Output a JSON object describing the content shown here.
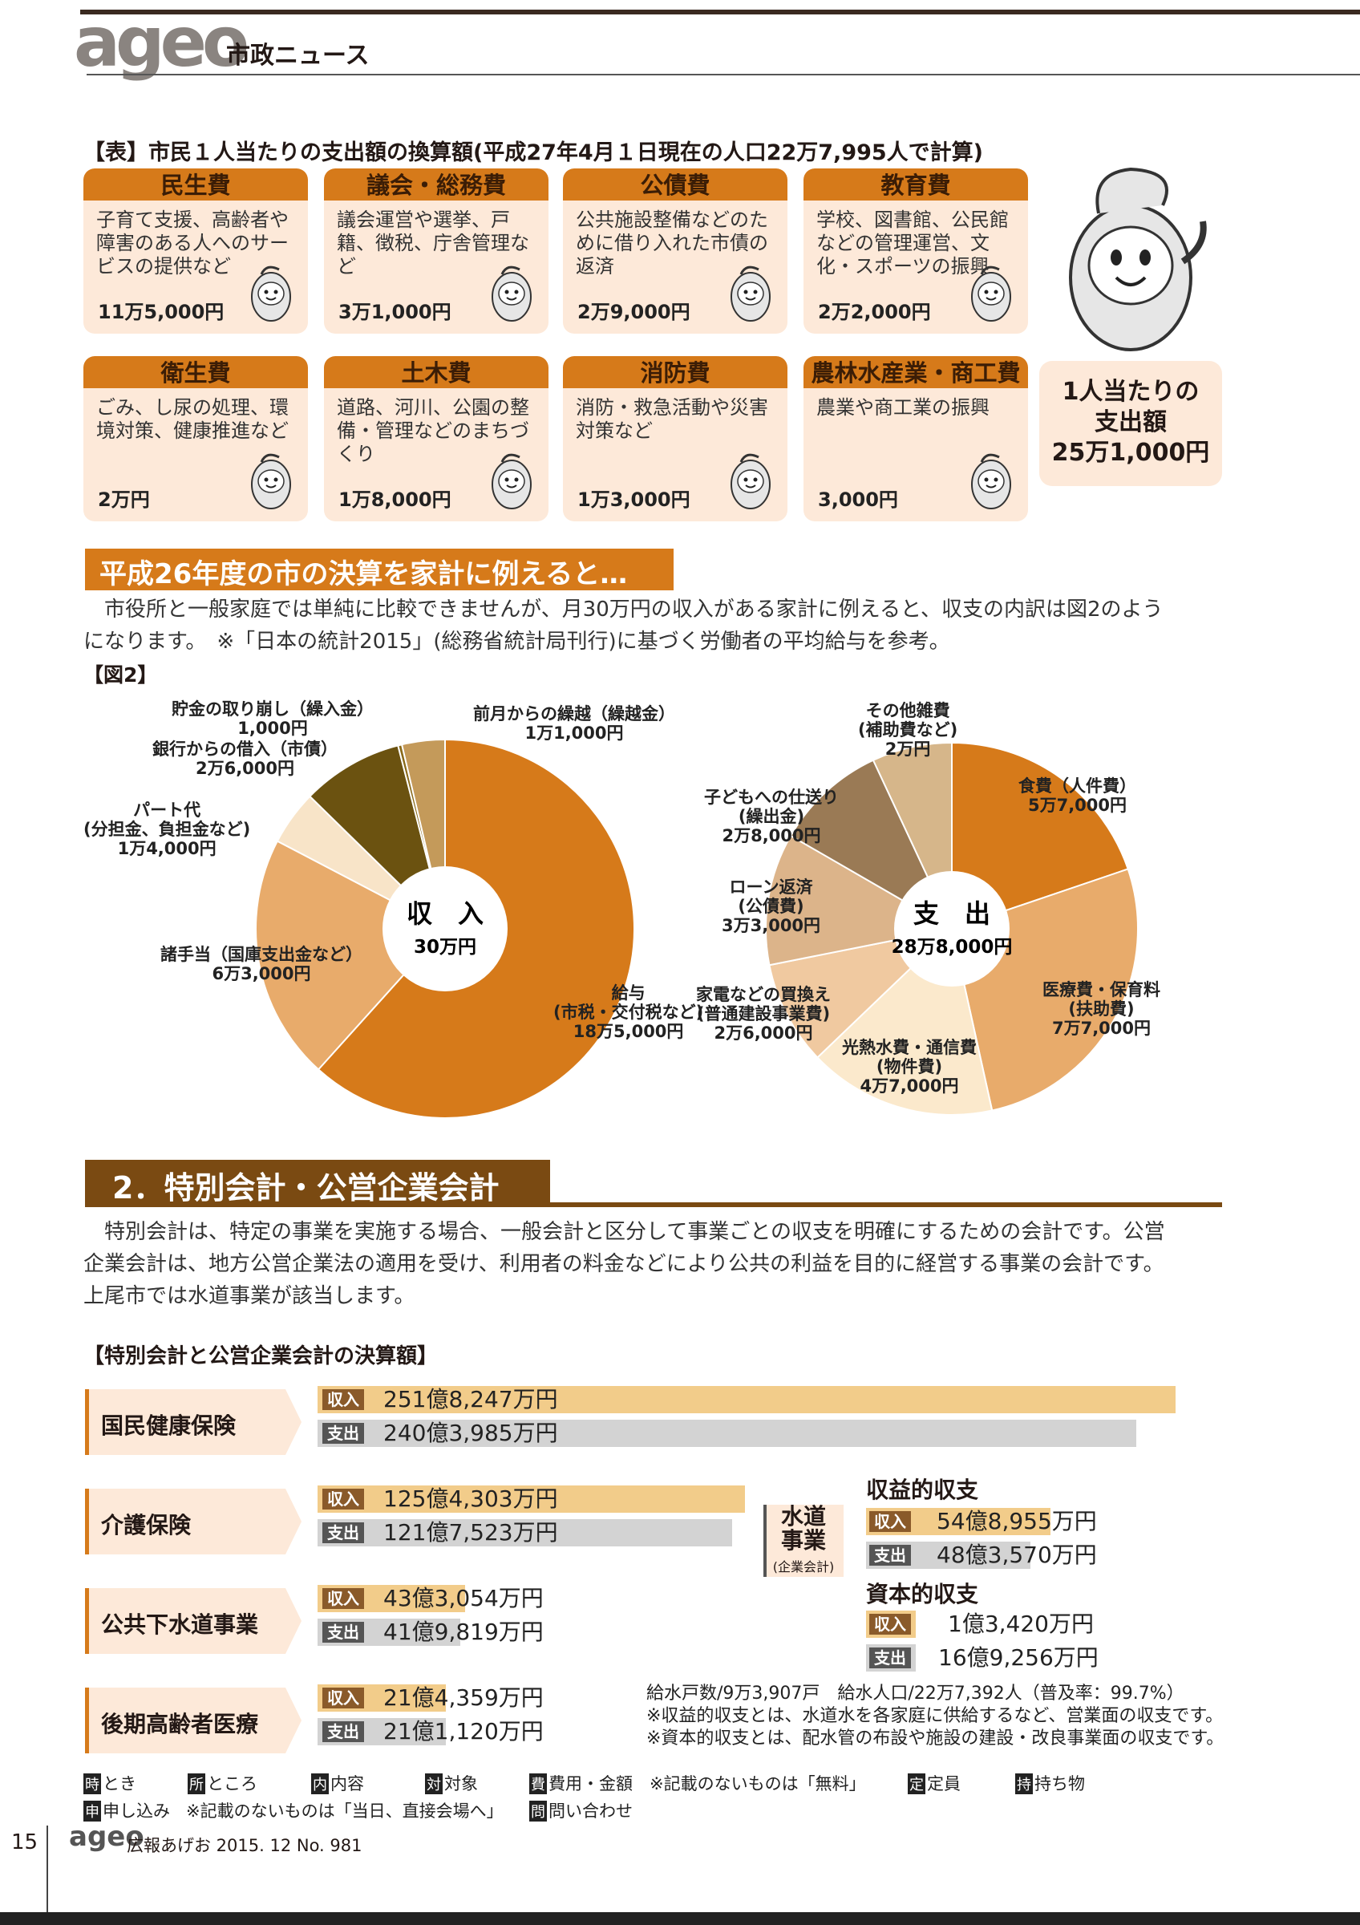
{
  "header": {
    "logo": "ageo",
    "title": "市政ニュース"
  },
  "table": {
    "title": "【表】市民１人当たりの支出額の換算額(平成27年4月１日現在の人口22万7,995人で計算)",
    "cards": [
      {
        "name": "民生費",
        "desc": "子育て支援、高齢者や障害のある人へのサービスの提供など",
        "amount": "11万5,000円"
      },
      {
        "name": "議会・総務費",
        "desc": "議会運営や選挙、戸籍、徴税、庁舎管理など",
        "amount": "3万1,000円"
      },
      {
        "name": "公債費",
        "desc": "公共施設整備などのために借り入れた市債の返済",
        "amount": "2万9,000円"
      },
      {
        "name": "教育費",
        "desc": "学校、図書館、公民館などの管理運営、文化・スポーツの振興",
        "amount": "2万2,000円"
      },
      {
        "name": "衛生費",
        "desc": "ごみ、し尿の処理、環境対策、健康推進など",
        "amount": "2万円"
      },
      {
        "name": "土木費",
        "desc": "道路、河川、公園の整備・管理などのまちづくり",
        "amount": "1万8,000円"
      },
      {
        "name": "消防費",
        "desc": "消防・救急活動や災害対策など",
        "amount": "1万3,000円"
      },
      {
        "name": "農林水産業・商工費",
        "desc": "農業や商工業の振興",
        "amount": "3,000円"
      }
    ],
    "total": {
      "line1": "1人当たりの",
      "line2": "支出額",
      "line3": "25万1,000円"
    }
  },
  "section_h26": {
    "title": "平成26年度の市の決算を家計に例えると…",
    "para_line1": "　市役所と一般家庭では単純に比較できませんが、月30万円の収入がある家計に例えると、収支の内訳は図2のよう",
    "para_line2": "になります。　※「日本の統計2015」(総務省統計局刊行)に基づく労働者の平均給与を参考。",
    "fig_label": "【図2】"
  },
  "chart_data": [
    {
      "type": "pie",
      "center_label": "収　入",
      "center_value": "30万円",
      "slices": [
        {
          "label": "給与\n(市税・交付税など)",
          "value_text": "18万5,000円",
          "value": 185000,
          "color": "#d67a1a"
        },
        {
          "label": "諸手当（国庫支出金など）",
          "value_text": "6万3,000円",
          "value": 63000,
          "color": "#e8ab6b"
        },
        {
          "label": "パート代\n(分担金、負担金など)",
          "value_text": "1万4,000円",
          "value": 14000,
          "color": "#f8e4c8"
        },
        {
          "label": "銀行からの借入（市債）",
          "value_text": "2万6,000円",
          "value": 26000,
          "color": "#6b5210"
        },
        {
          "label": "貯金の取り崩し（繰入金）",
          "value_text": "1,000円",
          "value": 1000,
          "color": "#8a6a1a"
        },
        {
          "label": "前月からの繰越（繰越金）",
          "value_text": "1万1,000円",
          "value": 11000,
          "color": "#c49a5a"
        }
      ]
    },
    {
      "type": "pie",
      "center_label": "支　出",
      "center_value": "28万8,000円",
      "slices": [
        {
          "label": "食費（人件費）",
          "value_text": "5万7,000円",
          "value": 57000,
          "color": "#d67a1a"
        },
        {
          "label": "医療費・保育料\n(扶助費)",
          "value_text": "7万7,000円",
          "value": 77000,
          "color": "#e8ab6b"
        },
        {
          "label": "光熱水費・通信費\n(物件費)",
          "value_text": "4万7,000円",
          "value": 47000,
          "color": "#fbe9cc"
        },
        {
          "label": "家電などの買換え\n(普通建設事業費)",
          "value_text": "2万6,000円",
          "value": 26000,
          "color": "#f0c9a0"
        },
        {
          "label": "ローン返済\n(公債費)",
          "value_text": "3万3,000円",
          "value": 33000,
          "color": "#dcb48a"
        },
        {
          "label": "子どもへの仕送り\n(繰出金)",
          "value_text": "2万8,000円",
          "value": 28000,
          "color": "#9a7a55"
        },
        {
          "label": "その他雑費\n(補助費など)",
          "value_text": "2万円",
          "value": 20000,
          "color": "#d6b68a"
        }
      ]
    }
  ],
  "section2": {
    "title": "2．特別会計・公営企業会計",
    "para_line1": "　特別会計は、特定の事業を実施する場合、一般会計と区分して事業ごとの収支を明確にするための会計です。公営",
    "para_line2": "企業会計は、地方公営企業法の適用を受け、利用者の料金などにより公共の利益を目的に経営する事業の会計です。",
    "para_line3": "上尾市では水道事業が該当します。",
    "acc_title": "【特別会計と公営企業会計の決算額】",
    "in_tag": "収入",
    "out_tag": "支出",
    "accounts": [
      {
        "name": "国民健康保険",
        "income": "251億8,247万円",
        "expense": "240億3,985万円",
        "income_v": 251.8247,
        "expense_v": 240.3985
      },
      {
        "name": "介護保険",
        "income": "125億4,303万円",
        "expense": "121億7,523万円",
        "income_v": 125.4303,
        "expense_v": 121.7523
      },
      {
        "name": "公共下水道事業",
        "income": "43億3,054万円",
        "expense": "41億9,819万円",
        "income_v": 43.3054,
        "expense_v": 41.9819
      },
      {
        "name": "後期高齢者医療",
        "income": "21億4,359万円",
        "expense": "21億1,120万円",
        "income_v": 21.4359,
        "expense_v": 21.112
      }
    ],
    "water": {
      "name_l1": "水道",
      "name_l2": "事業",
      "sub": "(企業会計)",
      "rev_title": "収益的収支",
      "rev_income": "54億8,955万円",
      "rev_expense": "48億3,570万円",
      "cap_title": "資本的収支",
      "cap_income": "1億3,420万円",
      "cap_expense": "16億9,256万円"
    },
    "notes": [
      "給水戸数/9万3,907戸　給水人口/22万7,392人（普及率：99.7%）",
      "※収益的収支とは、水道水を各家庭に供給するなど、営業面の収支です。",
      "※資本的収支とは、配水管の布設や施設の建設・改良事業面の収支です。"
    ]
  },
  "legend": {
    "items": [
      {
        "key": "時",
        "text": "とき"
      },
      {
        "key": "所",
        "text": "ところ"
      },
      {
        "key": "内",
        "text": "内容"
      },
      {
        "key": "対",
        "text": "対象"
      },
      {
        "key": "費",
        "text": "費用・金額"
      },
      {
        "key": "",
        "text": "※記載のないものは「無料」"
      },
      {
        "key": "定",
        "text": "定員"
      },
      {
        "key": "持",
        "text": "持ち物"
      }
    ],
    "items2": [
      {
        "key": "申",
        "text": "申し込み"
      },
      {
        "key": "",
        "text": "※記載のないものは「当日、直接会場へ」"
      },
      {
        "key": "問",
        "text": "問い合わせ"
      }
    ]
  },
  "footer": {
    "page": "15",
    "logo": "ageo",
    "text": "広報あげお 2015. 12 No. 981"
  }
}
